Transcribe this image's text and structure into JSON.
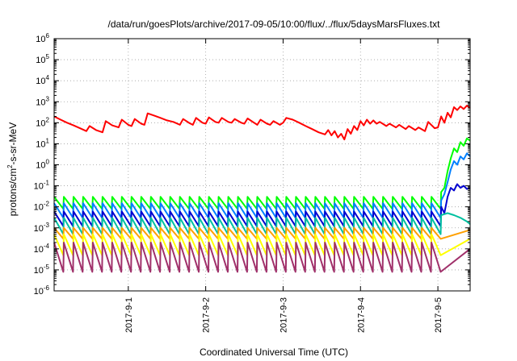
{
  "chart_data": {
    "type": "line",
    "title": "/data/run/goesPlots/archive/2017-09-05/10:00/flux/../flux/5daysMarsFluxes.txt",
    "xlabel": "Coordinated Universal Time (UTC)",
    "ylabel": {
      "prefix": "protons/cm",
      "sup": "2",
      "suffix": "-s-sr-MeV"
    },
    "yscale": "log",
    "ylim": [
      1e-06,
      1000000
    ],
    "xlim": [
      "2017-08-31 01:00",
      "2017-09-05 10:00"
    ],
    "grid": true,
    "x_ticks": [
      {
        "label": "2017-9-1",
        "time": "2017-09-01 00:00"
      },
      {
        "label": "2017-9-2",
        "time": "2017-09-02 00:00"
      },
      {
        "label": "2017-9-3",
        "time": "2017-09-03 00:00"
      },
      {
        "label": "2017-9-4",
        "time": "2017-09-04 00:00"
      },
      {
        "label": "2017-9-5",
        "time": "2017-09-05 00:00"
      }
    ],
    "y_ticks": [
      {
        "base": "10",
        "exp": "-6"
      },
      {
        "base": "10",
        "exp": "-5"
      },
      {
        "base": "10",
        "exp": "-4"
      },
      {
        "base": "10",
        "exp": "-3"
      },
      {
        "base": "10",
        "exp": "-2"
      },
      {
        "base": "10",
        "exp": "-1"
      },
      {
        "base": "10",
        "exp": "0"
      },
      {
        "base": "10",
        "exp": "1"
      },
      {
        "base": "10",
        "exp": "2"
      },
      {
        "base": "10",
        "exp": "3"
      },
      {
        "base": "10",
        "exp": "4"
      },
      {
        "base": "10",
        "exp": "5"
      },
      {
        "base": "10",
        "exp": "6"
      }
    ],
    "series": [
      {
        "color": "#ff0000",
        "points": [
          [
            "2017-08-31 01:00",
            200
          ],
          [
            "2017-08-31 03:00",
            140
          ],
          [
            "2017-08-31 05:00",
            100
          ],
          [
            "2017-08-31 07:00",
            75
          ],
          [
            "2017-08-31 09:00",
            55
          ],
          [
            "2017-08-31 11:00",
            40
          ],
          [
            "2017-08-31 12:00",
            70
          ],
          [
            "2017-08-31 14:00",
            45
          ],
          [
            "2017-08-31 16:00",
            35
          ],
          [
            "2017-08-31 17:00",
            120
          ],
          [
            "2017-08-31 19:00",
            75
          ],
          [
            "2017-08-31 21:00",
            60
          ],
          [
            "2017-08-31 22:00",
            140
          ],
          [
            "2017-09-01 00:00",
            80
          ],
          [
            "2017-09-01 01:00",
            70
          ],
          [
            "2017-09-01 02:00",
            150
          ],
          [
            "2017-09-01 04:00",
            90
          ],
          [
            "2017-09-01 05:00",
            80
          ],
          [
            "2017-09-01 06:00",
            280
          ],
          [
            "2017-09-01 08:00",
            220
          ],
          [
            "2017-09-01 10:00",
            170
          ],
          [
            "2017-09-01 12:00",
            130
          ],
          [
            "2017-09-01 14:00",
            110
          ],
          [
            "2017-09-01 16:00",
            80
          ],
          [
            "2017-09-01 17:00",
            150
          ],
          [
            "2017-09-01 19:00",
            95
          ],
          [
            "2017-09-01 20:00",
            80
          ],
          [
            "2017-09-01 21:00",
            170
          ],
          [
            "2017-09-01 23:00",
            100
          ],
          [
            "2017-09-02 00:00",
            90
          ],
          [
            "2017-09-02 01:00",
            180
          ],
          [
            "2017-09-02 03:00",
            110
          ],
          [
            "2017-09-02 04:00",
            100
          ],
          [
            "2017-09-02 05:00",
            170
          ],
          [
            "2017-09-02 07:00",
            110
          ],
          [
            "2017-09-02 08:00",
            100
          ],
          [
            "2017-09-02 09:00",
            150
          ],
          [
            "2017-09-02 11:00",
            100
          ],
          [
            "2017-09-02 12:00",
            90
          ],
          [
            "2017-09-02 13:00",
            160
          ],
          [
            "2017-09-02 15:00",
            100
          ],
          [
            "2017-09-02 16:00",
            80
          ],
          [
            "2017-09-02 17:00",
            140
          ],
          [
            "2017-09-02 19:00",
            90
          ],
          [
            "2017-09-02 20:00",
            80
          ],
          [
            "2017-09-02 21:00",
            120
          ],
          [
            "2017-09-02 23:00",
            80
          ],
          [
            "2017-09-03 00:00",
            100
          ],
          [
            "2017-09-03 01:00",
            170
          ],
          [
            "2017-09-03 03:00",
            140
          ],
          [
            "2017-09-03 05:00",
            100
          ],
          [
            "2017-09-03 07:00",
            70
          ],
          [
            "2017-09-03 09:00",
            50
          ],
          [
            "2017-09-03 11:00",
            35
          ],
          [
            "2017-09-03 13:00",
            28
          ],
          [
            "2017-09-03 14:00",
            45
          ],
          [
            "2017-09-03 15:00",
            25
          ],
          [
            "2017-09-03 16:00",
            40
          ],
          [
            "2017-09-03 17:00",
            20
          ],
          [
            "2017-09-03 18:00",
            30
          ],
          [
            "2017-09-03 19:00",
            16
          ],
          [
            "2017-09-03 20:00",
            50
          ],
          [
            "2017-09-03 21:00",
            30
          ],
          [
            "2017-09-03 22:00",
            70
          ],
          [
            "2017-09-03 23:00",
            45
          ],
          [
            "2017-09-04 00:00",
            120
          ],
          [
            "2017-09-04 01:00",
            75
          ],
          [
            "2017-09-04 02:00",
            140
          ],
          [
            "2017-09-04 03:00",
            90
          ],
          [
            "2017-09-04 04:00",
            130
          ],
          [
            "2017-09-04 05:00",
            90
          ],
          [
            "2017-09-04 06:00",
            110
          ],
          [
            "2017-09-04 08:00",
            70
          ],
          [
            "2017-09-04 09:00",
            90
          ],
          [
            "2017-09-04 11:00",
            60
          ],
          [
            "2017-09-04 12:00",
            80
          ],
          [
            "2017-09-04 14:00",
            50
          ],
          [
            "2017-09-04 15:00",
            70
          ],
          [
            "2017-09-04 17:00",
            45
          ],
          [
            "2017-09-04 18:00",
            60
          ],
          [
            "2017-09-04 20:00",
            40
          ],
          [
            "2017-09-04 21:00",
            110
          ],
          [
            "2017-09-04 23:00",
            55
          ],
          [
            "2017-09-05 00:00",
            60
          ],
          [
            "2017-09-05 01:00",
            200
          ],
          [
            "2017-09-05 02:00",
            100
          ],
          [
            "2017-09-05 03:00",
            300
          ],
          [
            "2017-09-05 04:00",
            180
          ],
          [
            "2017-09-05 05:00",
            550
          ],
          [
            "2017-09-05 06:00",
            400
          ],
          [
            "2017-09-05 07:00",
            600
          ],
          [
            "2017-09-05 08:00",
            450
          ],
          [
            "2017-09-05 09:00",
            650
          ],
          [
            "2017-09-05 10:00",
            500
          ]
        ]
      },
      {
        "color": "#00ff00",
        "sawtooth": {
          "high": 0.03,
          "low": 0.008
        },
        "rise": [
          [
            "2017-09-05 01:00",
            0.05
          ],
          [
            "2017-09-05 02:00",
            0.08
          ],
          [
            "2017-09-05 03:00",
            0.5
          ],
          [
            "2017-09-05 04:00",
            2
          ],
          [
            "2017-09-05 05:00",
            6
          ],
          [
            "2017-09-05 06:00",
            4
          ],
          [
            "2017-09-05 07:00",
            12
          ],
          [
            "2017-09-05 08:00",
            8
          ],
          [
            "2017-09-05 09:00",
            18
          ],
          [
            "2017-09-05 10:00",
            14
          ]
        ]
      },
      {
        "color": "#0080ff",
        "sawtooth": {
          "high": 0.015,
          "low": 0.003
        },
        "rise": [
          [
            "2017-09-05 01:00",
            0.02
          ],
          [
            "2017-09-05 02:00",
            0.04
          ],
          [
            "2017-09-05 03:00",
            0.15
          ],
          [
            "2017-09-05 04:00",
            0.6
          ],
          [
            "2017-09-05 05:00",
            1.5
          ],
          [
            "2017-09-05 06:00",
            1
          ],
          [
            "2017-09-05 07:00",
            2.5
          ],
          [
            "2017-09-05 08:00",
            1.8
          ],
          [
            "2017-09-05 09:00",
            3.5
          ],
          [
            "2017-09-05 10:00",
            2.5
          ]
        ]
      },
      {
        "color": "#0000d0",
        "sawtooth": {
          "high": 0.006,
          "low": 0.0012
        },
        "rise": [
          [
            "2017-09-05 01:00",
            0.01
          ],
          [
            "2017-09-05 02:00",
            0.005
          ],
          [
            "2017-09-05 03:00",
            0.03
          ],
          [
            "2017-09-05 04:00",
            0.08
          ],
          [
            "2017-09-05 05:00",
            0.06
          ],
          [
            "2017-09-05 06:00",
            0.12
          ],
          [
            "2017-09-05 07:00",
            0.08
          ],
          [
            "2017-09-05 08:00",
            0.1
          ],
          [
            "2017-09-05 09:00",
            0.07
          ],
          [
            "2017-09-05 10:00",
            0.08
          ]
        ]
      },
      {
        "color": "#00c0a0",
        "sawtooth": {
          "high": 0.003,
          "low": 0.0005
        },
        "rise": [
          [
            "2017-09-05 01:00",
            0.004
          ],
          [
            "2017-09-05 03:00",
            0.005
          ],
          [
            "2017-09-05 05:00",
            0.004
          ],
          [
            "2017-09-05 07:00",
            0.003
          ],
          [
            "2017-09-05 09:00",
            0.002
          ],
          [
            "2017-09-05 10:00",
            0.0015
          ]
        ]
      },
      {
        "color": "#ffa000",
        "sawtooth": {
          "high": 0.001,
          "low": 0.0003
        },
        "rise": [
          [
            "2017-09-05 10:00",
            0.0008
          ]
        ]
      },
      {
        "color": "#ffff00",
        "sawtooth": {
          "high": 0.0005,
          "low": 5e-05
        },
        "rise": [
          [
            "2017-09-05 10:00",
            0.0003
          ]
        ]
      },
      {
        "color": "#a0306a",
        "sawtooth": {
          "high": 0.0002,
          "low": 8e-06
        },
        "rise": [
          [
            "2017-09-05 10:00",
            0.0001
          ]
        ]
      }
    ]
  }
}
